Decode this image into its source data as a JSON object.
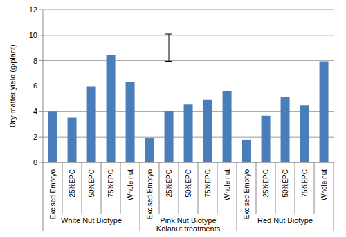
{
  "chart_data": {
    "type": "bar",
    "xlabel": "Kolanut treatments",
    "ylabel": "Dry matter yield (g/plant)",
    "categories": [
      "Excised Embryo",
      "25%EPC",
      "50%EPC",
      "75%EPC",
      "Whole nut",
      "Excised Embryo",
      "25%EPC",
      "50%EPC",
      "75%EPC",
      "Whole nut",
      "Excised Embryo",
      "25%EPC",
      "50%EPC",
      "75%EPC",
      "Whole nut"
    ],
    "group_labels": [
      "White Nut Biotype",
      "Pink Nut Biotype",
      "Red Nut Biotype"
    ],
    "values": [
      4.0,
      3.5,
      5.95,
      8.45,
      6.35,
      1.95,
      4.05,
      4.55,
      4.9,
      5.65,
      1.8,
      3.65,
      5.15,
      4.5,
      7.9
    ],
    "color": "#4a7ebb",
    "ylim": [
      0,
      12
    ],
    "yticks": [
      0,
      2,
      4,
      6,
      8,
      10,
      12
    ],
    "grid": true,
    "error_bar": [
      7.9,
      10.1
    ]
  }
}
